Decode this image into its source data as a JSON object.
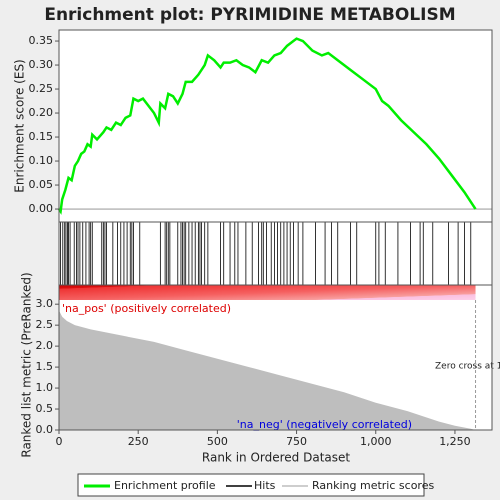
{
  "chart_data": {
    "type": "gsea",
    "title": "Enrichment plot: PYRIMIDINE METABOLISM",
    "es_ylabel": "Enrichment score (ES)",
    "metric_ylabel": "Ranked list metric (PreRanked)",
    "xlabel": "Rank in Ordered Dataset",
    "pos_label": "'na_pos' (positively correlated)",
    "neg_label": "'na_neg' (negatively correlated)",
    "zero_cross_label": "Zero cross at 1315",
    "zero_cross": 1315,
    "xlim": [
      0,
      1367
    ],
    "xticks": [
      0,
      250,
      500,
      750,
      {
        "value": 1000,
        "label": "1,000"
      },
      {
        "value": 1250,
        "label": "1,250"
      }
    ],
    "es_ylim": [
      -0.027,
      0.373
    ],
    "es_yticks": [
      {
        "value": 0,
        "label": "0.00"
      },
      {
        "value": 0.05,
        "label": "0.05"
      },
      {
        "value": 0.1,
        "label": "0.10"
      },
      {
        "value": 0.15,
        "label": "0.15"
      },
      {
        "value": 0.2,
        "label": "0.20"
      },
      {
        "value": 0.25,
        "label": "0.25"
      },
      {
        "value": 0.3,
        "label": "0.30"
      },
      {
        "value": 0.35,
        "label": "0.35"
      }
    ],
    "metric_ylim": [
      0,
      3.1
    ],
    "metric_yticks": [
      {
        "value": 0,
        "label": "0.0"
      },
      {
        "value": 0.5,
        "label": "0.5"
      },
      {
        "value": 1,
        "label": "1.0"
      },
      {
        "value": 1.5,
        "label": "1.5"
      },
      {
        "value": 2,
        "label": "2.0"
      },
      {
        "value": 2.5,
        "label": "2.5"
      },
      {
        "value": 3,
        "label": "3.0"
      }
    ],
    "profile": {
      "name": "Enrichment profile",
      "color": "#00ee00",
      "x": [
        0,
        5,
        10,
        20,
        30,
        40,
        50,
        60,
        70,
        80,
        90,
        100,
        105,
        120,
        140,
        150,
        165,
        180,
        195,
        210,
        225,
        235,
        250,
        265,
        300,
        315,
        320,
        335,
        345,
        360,
        375,
        390,
        400,
        420,
        440,
        460,
        470,
        490,
        510,
        520,
        540,
        560,
        580,
        600,
        620,
        640,
        660,
        680,
        700,
        720,
        740,
        750,
        770,
        800,
        830,
        850,
        880,
        920,
        960,
        1000,
        1020,
        1040,
        1080,
        1120,
        1160,
        1200,
        1240,
        1280,
        1315
      ],
      "values": [
        0,
        -0.005,
        0.02,
        0.04,
        0.065,
        0.06,
        0.09,
        0.1,
        0.115,
        0.12,
        0.135,
        0.13,
        0.155,
        0.145,
        0.16,
        0.17,
        0.165,
        0.18,
        0.175,
        0.19,
        0.195,
        0.23,
        0.225,
        0.23,
        0.2,
        0.18,
        0.22,
        0.21,
        0.24,
        0.235,
        0.22,
        0.24,
        0.265,
        0.265,
        0.28,
        0.3,
        0.32,
        0.31,
        0.295,
        0.305,
        0.305,
        0.31,
        0.3,
        0.295,
        0.285,
        0.31,
        0.305,
        0.32,
        0.325,
        0.34,
        0.35,
        0.355,
        0.35,
        0.33,
        0.32,
        0.325,
        0.31,
        0.29,
        0.27,
        0.25,
        0.225,
        0.215,
        0.185,
        0.16,
        0.135,
        0.105,
        0.07,
        0.035,
        0
      ]
    },
    "hits": {
      "name": "Hits",
      "color": "#000000",
      "values": [
        5,
        12,
        18,
        22,
        27,
        30,
        35,
        48,
        55,
        60,
        66,
        75,
        85,
        95,
        100,
        105,
        135,
        140,
        145,
        150,
        170,
        185,
        195,
        205,
        215,
        225,
        230,
        235,
        255,
        320,
        335,
        340,
        345,
        350,
        375,
        385,
        390,
        395,
        400,
        410,
        420,
        430,
        440,
        445,
        450,
        460,
        470,
        510,
        520,
        540,
        555,
        565,
        590,
        610,
        630,
        640,
        645,
        655,
        670,
        680,
        690,
        700,
        710,
        720,
        730,
        740,
        755,
        770,
        810,
        840,
        860,
        880,
        920,
        940,
        1000,
        1010,
        1030,
        1070,
        1110,
        1140,
        1150,
        1180,
        1230,
        1260,
        1280,
        1300
      ]
    },
    "metric": {
      "name": "Ranking metric scores",
      "color": "#bebebe",
      "x": [
        0,
        10,
        25,
        50,
        100,
        200,
        300,
        400,
        500,
        600,
        700,
        800,
        900,
        1000,
        1100,
        1200,
        1250,
        1300,
        1315
      ],
      "values": [
        2.85,
        2.7,
        2.6,
        2.5,
        2.4,
        2.25,
        2.1,
        1.9,
        1.7,
        1.5,
        1.3,
        1.1,
        0.9,
        0.65,
        0.45,
        0.2,
        0.1,
        0.03,
        0
      ]
    }
  }
}
